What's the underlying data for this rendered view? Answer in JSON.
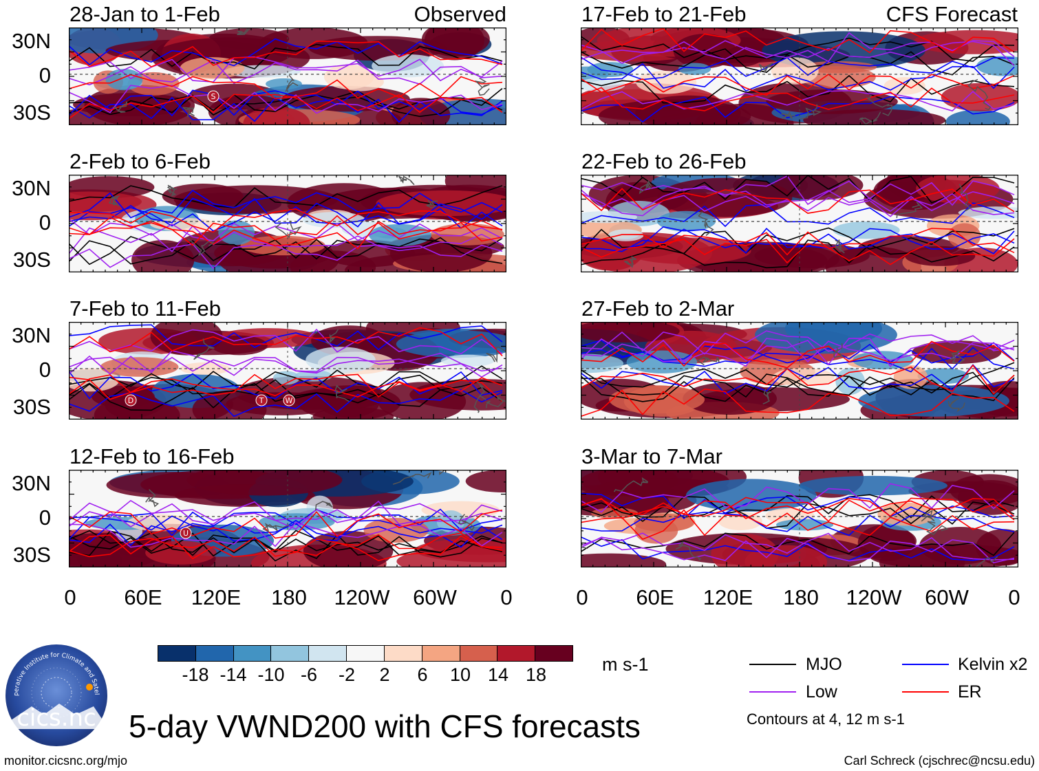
{
  "chart_data": {
    "type": "heatmap",
    "title": "5-day VWND200 with CFS forecasts",
    "variable": "VWND200",
    "units": "m s-1",
    "x_ticks": [
      "0",
      "60E",
      "120E",
      "180",
      "120W",
      "60W",
      "0"
    ],
    "y_ticks": [
      "30N",
      "0",
      "30S"
    ],
    "colorbar": {
      "labels": [
        "-18",
        "-14",
        "-10",
        "-6",
        "-2",
        "2",
        "6",
        "10",
        "14",
        "18"
      ],
      "colors": [
        "#08306b",
        "#2166ac",
        "#4393c3",
        "#92c5de",
        "#d1e5f0",
        "#f7f7f7",
        "#fddbc7",
        "#f4a582",
        "#d6604d",
        "#b2182b",
        "#67001f"
      ]
    },
    "legend": [
      {
        "name": "MJO",
        "color": "#000000"
      },
      {
        "name": "Kelvin x2",
        "color": "#0000ff"
      },
      {
        "name": "Low",
        "color": "#a020f0"
      },
      {
        "name": "ER",
        "color": "#ff0000"
      }
    ],
    "contours_note": "Contours at 4, 12 m s-1",
    "panels": [
      {
        "period": "28-Jan to 1-Feb",
        "source": "Observed",
        "markers": [
          {
            "label": "S"
          }
        ]
      },
      {
        "period": "2-Feb to 6-Feb",
        "source": "",
        "markers": []
      },
      {
        "period": "7-Feb to 11-Feb",
        "source": "",
        "markers": [
          {
            "label": "D"
          },
          {
            "label": "T"
          },
          {
            "label": "W"
          }
        ]
      },
      {
        "period": "12-Feb to 16-Feb",
        "source": "",
        "markers": [
          {
            "label": "U"
          }
        ]
      },
      {
        "period": "17-Feb to 21-Feb",
        "source": "CFS Forecast",
        "markers": []
      },
      {
        "period": "22-Feb to 26-Feb",
        "source": "",
        "markers": []
      },
      {
        "period": "27-Feb to 2-Mar",
        "source": "",
        "markers": []
      },
      {
        "period": "3-Mar to 7-Mar",
        "source": "",
        "markers": []
      }
    ]
  },
  "footer": {
    "logo_text": "cics.nc",
    "logo_ring_text": "Cooperative Institute for Climate and Satellites",
    "url": "monitor.cicsnc.org/mjo",
    "credit": "Carl Schreck (cjschrec@ncsu.edu)"
  }
}
